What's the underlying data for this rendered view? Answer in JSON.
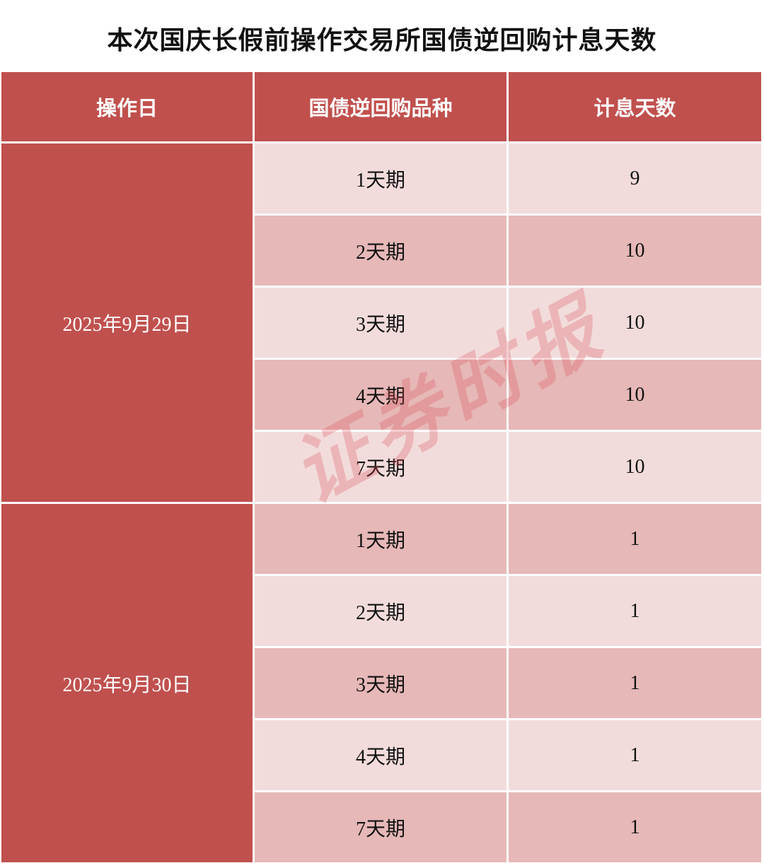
{
  "title": "本次国庆长假前操作交易所国债逆回购计息天数",
  "headers": [
    "操作日",
    "国债逆回购品种",
    "计息天数"
  ],
  "groups": [
    {
      "date": "2025年9月29日",
      "rows": [
        {
          "product": "1天期",
          "days": "9"
        },
        {
          "product": "2天期",
          "days": "10"
        },
        {
          "product": "3天期",
          "days": "10"
        },
        {
          "product": "4天期",
          "days": "10"
        },
        {
          "product": "7天期",
          "days": "10"
        }
      ]
    },
    {
      "date": "2025年9月30日",
      "rows": [
        {
          "product": "1天期",
          "days": "1"
        },
        {
          "product": "2天期",
          "days": "1"
        },
        {
          "product": "3天期",
          "days": "1"
        },
        {
          "product": "4天期",
          "days": "1"
        },
        {
          "product": "7天期",
          "days": "1"
        }
      ]
    }
  ],
  "watermark": "证券时报",
  "colors": {
    "header": "#c0504d",
    "row_light": "#f2dcdb",
    "row_dark": "#e6b8b7"
  }
}
